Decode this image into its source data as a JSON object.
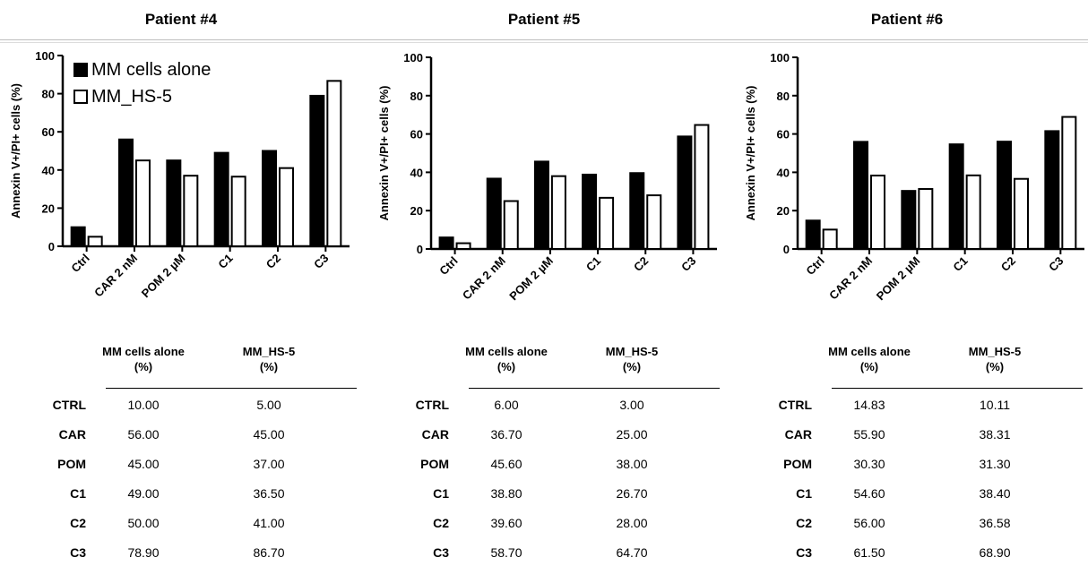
{
  "legend": {
    "series1": "MM cells alone",
    "series2": "MM_HS-5"
  },
  "table_header": {
    "col1_line1": "MM cells alone",
    "col1_line2": "(%)",
    "col2_line1": "MM_HS-5",
    "col2_line2": "(%)"
  },
  "table_row_labels": [
    "CTRL",
    "CAR",
    "POM",
    "C1",
    "C2",
    "C3"
  ],
  "colors": {
    "series1": "#000000",
    "series2": "#ffffff"
  },
  "chart_data": [
    {
      "type": "bar",
      "title": "Patient #4",
      "ylabel": "Annexin V+/PI+ cells (%)",
      "ylim": [
        0,
        100
      ],
      "yticks": [
        "0",
        "20",
        "40",
        "60",
        "80",
        "100"
      ],
      "categories": [
        "Ctrl",
        "CAR 2 nM",
        "POM 2 µM",
        "C1",
        "C2",
        "C3"
      ],
      "series": [
        {
          "name": "MM cells alone",
          "values": [
            10.0,
            56.0,
            45.0,
            49.0,
            50.0,
            78.9
          ],
          "display": [
            "10.00",
            "56.00",
            "45.00",
            "49.00",
            "50.00",
            "78.90"
          ]
        },
        {
          "name": "MM_HS-5",
          "values": [
            5.0,
            45.0,
            37.0,
            36.5,
            41.0,
            86.7
          ],
          "display": [
            "5.00",
            "45.00",
            "37.00",
            "36.50",
            "41.00",
            "86.70"
          ]
        }
      ]
    },
    {
      "type": "bar",
      "title": "Patient #5",
      "ylabel": "Annexin V+/PI+ cells (%)",
      "ylim": [
        0,
        100
      ],
      "yticks": [
        "0",
        "20",
        "40",
        "60",
        "80",
        "100"
      ],
      "categories": [
        "Ctrl",
        "CAR 2 nM",
        "POM 2 µM",
        "C1",
        "C2",
        "C3"
      ],
      "series": [
        {
          "name": "MM cells alone",
          "values": [
            6.0,
            36.7,
            45.6,
            38.8,
            39.6,
            58.7
          ],
          "display": [
            "6.00",
            "36.70",
            "45.60",
            "38.80",
            "39.60",
            "58.70"
          ]
        },
        {
          "name": "MM_HS-5",
          "values": [
            3.0,
            25.0,
            38.0,
            26.7,
            28.0,
            64.7
          ],
          "display": [
            "3.00",
            "25.00",
            "38.00",
            "26.70",
            "28.00",
            "64.70"
          ]
        }
      ]
    },
    {
      "type": "bar",
      "title": "Patient #6",
      "ylabel": "Annexin V+/PI+ cells (%)",
      "ylim": [
        0,
        100
      ],
      "yticks": [
        "0",
        "20",
        "40",
        "60",
        "80",
        "100"
      ],
      "categories": [
        "Ctrl",
        "CAR 2 nM",
        "POM 2 µM",
        "C1",
        "C2",
        "C3"
      ],
      "series": [
        {
          "name": "MM cells alone",
          "values": [
            14.83,
            55.9,
            30.3,
            54.6,
            56.0,
            61.5
          ],
          "display": [
            "14.83",
            "55.90",
            "30.30",
            "54.60",
            "56.00",
            "61.50"
          ]
        },
        {
          "name": "MM_HS-5",
          "values": [
            10.11,
            38.31,
            31.3,
            38.4,
            36.58,
            68.9
          ],
          "display": [
            "10.11",
            "38.31",
            "31.30",
            "38.40",
            "36.58",
            "68.90"
          ]
        }
      ]
    }
  ]
}
